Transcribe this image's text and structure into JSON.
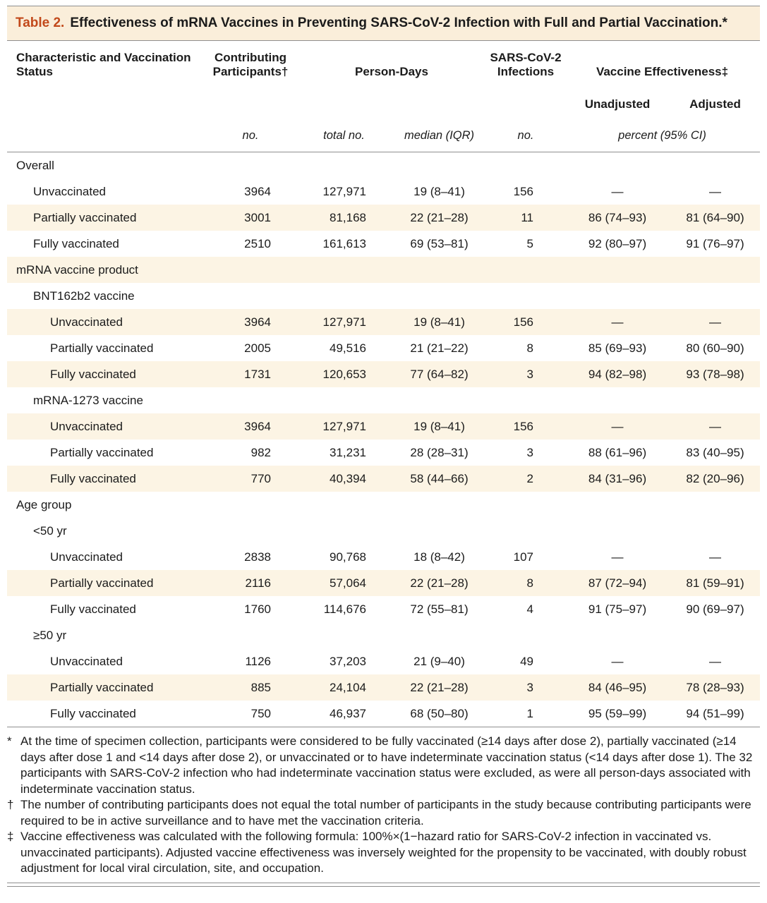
{
  "title": {
    "label": "Table 2.",
    "text": "Effectiveness of mRNA Vaccines in Preventing SARS-CoV-2 Infection with Full and Partial Vaccination.*"
  },
  "header": {
    "characteristic": "Characteristic and Vaccination Status",
    "participants": "Contributing Participants†",
    "person_days": "Person-Days",
    "infections": "SARS-CoV-2 Infections",
    "effectiveness": "Vaccine Effectiveness‡",
    "unadjusted": "Unadjusted",
    "adjusted": "Adjusted",
    "unit_participants": "no.",
    "unit_person_days_total": "total no.",
    "unit_person_days_median": "median (IQR)",
    "unit_infections": "no.",
    "unit_effectiveness": "percent (95% CI)"
  },
  "rows": [
    {
      "label": "Overall",
      "indent": 0,
      "section": true,
      "shaded": false
    },
    {
      "label": "Unvaccinated",
      "indent": 1,
      "shaded": false,
      "participants": "3964",
      "total": "127,971",
      "median": "19 (8–41)",
      "infections": "156",
      "unadjusted": "—",
      "adjusted": "—"
    },
    {
      "label": "Partially vaccinated",
      "indent": 1,
      "shaded": true,
      "participants": "3001",
      "total": "81,168",
      "median": "22 (21–28)",
      "infections": "11",
      "unadjusted": "86 (74–93)",
      "adjusted": "81 (64–90)"
    },
    {
      "label": "Fully vaccinated",
      "indent": 1,
      "shaded": false,
      "participants": "2510",
      "total": "161,613",
      "median": "69 (53–81)",
      "infections": "5",
      "unadjusted": "92 (80–97)",
      "adjusted": "91 (76–97)"
    },
    {
      "label": "mRNA vaccine product",
      "indent": 0,
      "section": true,
      "shaded": true
    },
    {
      "label": "BNT162b2 vaccine",
      "indent": 1,
      "section": true,
      "shaded": false
    },
    {
      "label": "Unvaccinated",
      "indent": 2,
      "shaded": true,
      "participants": "3964",
      "total": "127,971",
      "median": "19 (8–41)",
      "infections": "156",
      "unadjusted": "—",
      "adjusted": "—"
    },
    {
      "label": "Partially vaccinated",
      "indent": 2,
      "shaded": false,
      "participants": "2005",
      "total": "49,516",
      "median": "21 (21–22)",
      "infections": "8",
      "unadjusted": "85 (69–93)",
      "adjusted": "80 (60–90)"
    },
    {
      "label": "Fully vaccinated",
      "indent": 2,
      "shaded": true,
      "participants": "1731",
      "total": "120,653",
      "median": "77 (64–82)",
      "infections": "3",
      "unadjusted": "94 (82–98)",
      "adjusted": "93 (78–98)"
    },
    {
      "label": "mRNA-1273 vaccine",
      "indent": 1,
      "section": true,
      "shaded": false
    },
    {
      "label": "Unvaccinated",
      "indent": 2,
      "shaded": true,
      "participants": "3964",
      "total": "127,971",
      "median": "19 (8–41)",
      "infections": "156",
      "unadjusted": "—",
      "adjusted": "—"
    },
    {
      "label": "Partially vaccinated",
      "indent": 2,
      "shaded": false,
      "participants": "982",
      "total": "31,231",
      "median": "28 (28–31)",
      "infections": "3",
      "unadjusted": "88 (61–96)",
      "adjusted": "83 (40–95)"
    },
    {
      "label": "Fully vaccinated",
      "indent": 2,
      "shaded": true,
      "participants": "770",
      "total": "40,394",
      "median": "58 (44–66)",
      "infections": "2",
      "unadjusted": "84 (31–96)",
      "adjusted": "82 (20–96)"
    },
    {
      "label": "Age group",
      "indent": 0,
      "section": true,
      "shaded": false
    },
    {
      "label": "<50 yr",
      "indent": 1,
      "section": true,
      "shaded": false
    },
    {
      "label": "Unvaccinated",
      "indent": 2,
      "shaded": false,
      "participants": "2838",
      "total": "90,768",
      "median": "18 (8–42)",
      "infections": "107",
      "unadjusted": "—",
      "adjusted": "—"
    },
    {
      "label": "Partially vaccinated",
      "indent": 2,
      "shaded": true,
      "participants": "2116",
      "total": "57,064",
      "median": "22 (21–28)",
      "infections": "8",
      "unadjusted": "87 (72–94)",
      "adjusted": "81 (59–91)"
    },
    {
      "label": "Fully vaccinated",
      "indent": 2,
      "shaded": false,
      "participants": "1760",
      "total": "114,676",
      "median": "72 (55–81)",
      "infections": "4",
      "unadjusted": "91 (75–97)",
      "adjusted": "90 (69–97)"
    },
    {
      "label": "≥50 yr",
      "indent": 1,
      "section": true,
      "shaded": false
    },
    {
      "label": "Unvaccinated",
      "indent": 2,
      "shaded": false,
      "participants": "1126",
      "total": "37,203",
      "median": "21 (9–40)",
      "infections": "49",
      "unadjusted": "—",
      "adjusted": "—"
    },
    {
      "label": "Partially vaccinated",
      "indent": 2,
      "shaded": true,
      "participants": "885",
      "total": "24,104",
      "median": "22 (21–28)",
      "infections": "3",
      "unadjusted": "84 (46–95)",
      "adjusted": "78 (28–93)"
    },
    {
      "label": "Fully vaccinated",
      "indent": 2,
      "shaded": false,
      "participants": "750",
      "total": "46,937",
      "median": "68 (50–80)",
      "infections": "1",
      "unadjusted": "95 (59–99)",
      "adjusted": "94 (51–99)"
    }
  ],
  "footnotes": [
    {
      "symbol": "*",
      "text": "At the time of specimen collection, participants were considered to be fully vaccinated (≥14 days after dose 2), partially vaccinated (≥14 days after dose 1 and <14 days after dose 2), or unvaccinated or to have indeterminate vaccination status (<14 days after dose 1). The 32 participants with SARS-CoV-2 infection who had indeterminate vaccination status were excluded, as were all person-days associated with indeterminate vaccination status."
    },
    {
      "symbol": "†",
      "text": "The number of contributing participants does not equal the total number of participants in the study because contributing participants were required to be in active surveillance and to have met the vaccination criteria."
    },
    {
      "symbol": "‡",
      "text": "Vaccine effectiveness was calculated with the following formula: 100%×(1−hazard ratio for SARS-CoV-2 infection in vaccinated vs. unvaccinated participants). Adjusted vaccine effectiveness was inversely weighted for the propensity to be vaccinated, with doubly robust adjustment for local viral circulation, site, and occupation."
    }
  ],
  "colors": {
    "accent": "#c2491b",
    "title_bar": "#faeeda",
    "row_stripe": "#fcf4e4",
    "rule": "#8f8f8f"
  }
}
